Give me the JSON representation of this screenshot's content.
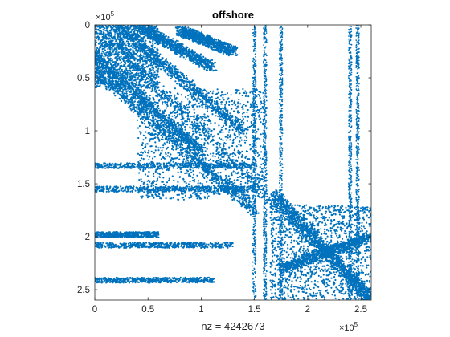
{
  "chart_data": {
    "type": "spy",
    "title": "offshore",
    "xlabel": "nz = 4242673",
    "ylabel": "",
    "matrix_size": 259789,
    "xlim": [
      0,
      259789
    ],
    "ylim": [
      0,
      259789
    ],
    "y_reversed": true,
    "xticks": [
      0,
      50000,
      100000,
      150000,
      200000,
      250000
    ],
    "yticks": [
      0,
      50000,
      100000,
      150000,
      200000,
      250000
    ],
    "xtick_labels": [
      "0",
      "0.5",
      "1",
      "1.5",
      "2",
      "2.5"
    ],
    "ytick_labels": [
      "0",
      "0.5",
      "1",
      "1.5",
      "2",
      "2.5"
    ],
    "x_multiplier": {
      "base": "×10",
      "exp": "5"
    },
    "y_multiplier": {
      "base": "×10",
      "exp": "5"
    },
    "marker_color": "#0072BD",
    "grid": false,
    "diagonal_bands": [
      {
        "from": [
          0,
          0
        ],
        "to": [
          259789,
          259789
        ]
      },
      {
        "from": [
          2000,
          45000
        ],
        "to": [
          150000,
          175000
        ]
      },
      {
        "from": [
          20000,
          0
        ],
        "to": [
          140000,
          100000
        ]
      },
      {
        "from": [
          40000,
          0
        ],
        "to": [
          110000,
          40000
        ]
      },
      {
        "from": [
          0,
          30000
        ],
        "to": [
          100000,
          120000
        ]
      },
      {
        "from": [
          80000,
          5000
        ],
        "to": [
          130000,
          25000
        ]
      },
      {
        "from": [
          170000,
          160000
        ],
        "to": [
          259789,
          259789
        ]
      },
      {
        "from": [
          175000,
          230000
        ],
        "to": [
          259789,
          200000
        ]
      }
    ],
    "dense_blocks": [
      {
        "x": [
          165000,
          259789
        ],
        "y": [
          170000,
          259789
        ]
      },
      {
        "x": [
          40000,
          160000
        ],
        "y": [
          60000,
          165000
        ]
      },
      {
        "x": [
          0,
          60000
        ],
        "y": [
          0,
          60000
        ]
      }
    ],
    "horizontal_bands": [
      {
        "y": 241000,
        "x": [
          0,
          112000
        ]
      },
      {
        "y": 198000,
        "x": [
          0,
          60000
        ]
      },
      {
        "y": 208000,
        "x": [
          0,
          130000
        ]
      },
      {
        "y": 155000,
        "x": [
          0,
          150000
        ]
      },
      {
        "y": 133000,
        "x": [
          0,
          150000
        ]
      }
    ],
    "vertical_bands": [
      {
        "x": 240000,
        "y": [
          0,
          259789
        ]
      },
      {
        "x": 247000,
        "y": [
          0,
          259789
        ]
      },
      {
        "x": 175000,
        "y": [
          0,
          259789
        ]
      },
      {
        "x": 150000,
        "y": [
          0,
          259789
        ]
      },
      {
        "x": 160000,
        "y": [
          0,
          260000
        ]
      }
    ]
  }
}
